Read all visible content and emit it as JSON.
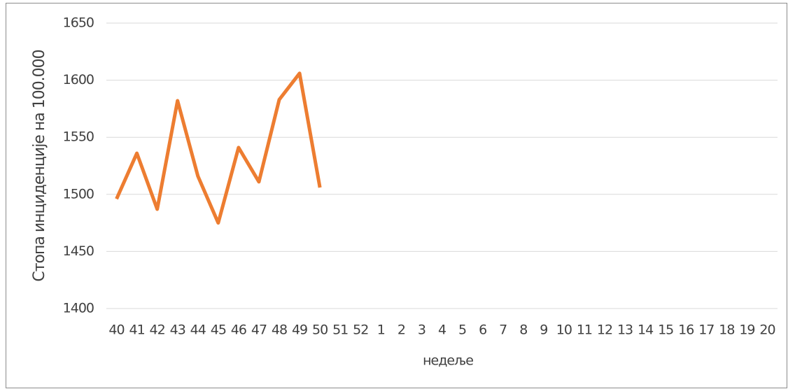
{
  "chart_data": {
    "type": "line",
    "x_label": "недеље",
    "y_label": "Стопа инциденције на 100.000",
    "categories": [
      "40",
      "41",
      "42",
      "43",
      "44",
      "45",
      "46",
      "47",
      "48",
      "49",
      "50",
      "51",
      "52",
      "1",
      "2",
      "3",
      "4",
      "5",
      "6",
      "7",
      "8",
      "9",
      "10",
      "11",
      "12",
      "13",
      "14",
      "15",
      "16",
      "17",
      "18",
      "19",
      "20"
    ],
    "series": [
      {
        "name": "Стопа инциденције",
        "color": "#ed7d31",
        "values": [
          1496,
          1536,
          1487,
          1582,
          1516,
          1475,
          1541,
          1511,
          1583,
          1606,
          1506,
          null,
          null,
          null,
          null,
          null,
          null,
          null,
          null,
          null,
          null,
          null,
          null,
          null,
          null,
          null,
          null,
          null,
          null,
          null,
          null,
          null,
          null
        ]
      }
    ],
    "ylim": [
      1400,
      1650
    ],
    "yticks": [
      1400,
      1450,
      1500,
      1550,
      1600,
      1650
    ],
    "grid": true
  }
}
